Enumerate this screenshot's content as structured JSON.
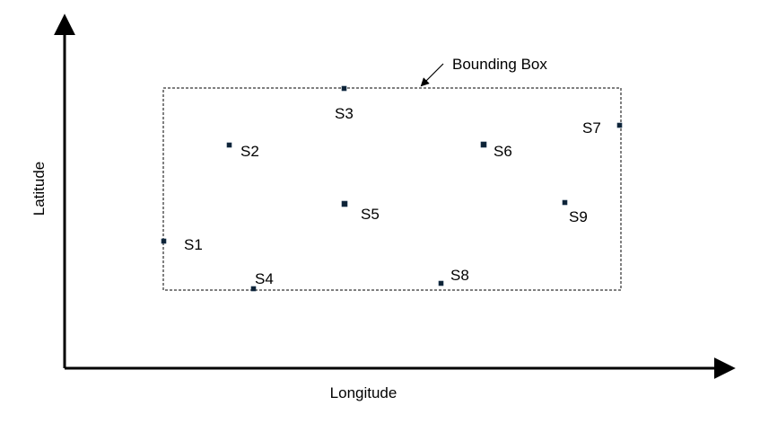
{
  "axes": {
    "x_label": "Longitude",
    "y_label": "Latitude"
  },
  "bounding_box": {
    "label": "Bounding Box"
  },
  "stations": [
    {
      "id": "S1",
      "label": "S1"
    },
    {
      "id": "S2",
      "label": "S2"
    },
    {
      "id": "S3",
      "label": "S3"
    },
    {
      "id": "S4",
      "label": "S4"
    },
    {
      "id": "S5",
      "label": "S5"
    },
    {
      "id": "S6",
      "label": "S6"
    },
    {
      "id": "S7",
      "label": "S7"
    },
    {
      "id": "S8",
      "label": "S8"
    },
    {
      "id": "S9",
      "label": "S9"
    }
  ],
  "colors": {
    "axis": "#000000",
    "marker": "#0d2235"
  }
}
